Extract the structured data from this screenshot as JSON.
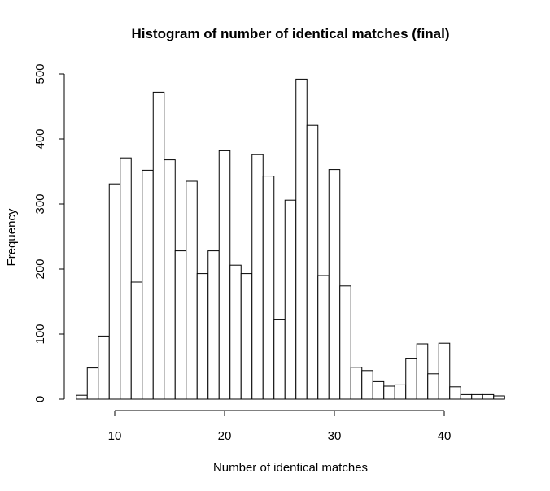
{
  "chart_data": {
    "type": "bar",
    "title": "Histogram of number of identical matches (final)",
    "xlabel": "Number of identical matches",
    "ylabel": "Frequency",
    "xlim": [
      7,
      45
    ],
    "ylim": [
      0,
      500
    ],
    "x_ticks": [
      10,
      20,
      30,
      40
    ],
    "y_ticks": [
      0,
      100,
      200,
      300,
      400,
      500
    ],
    "bin_width": 1,
    "bins": [
      {
        "x": 7,
        "value": 6
      },
      {
        "x": 8,
        "value": 48
      },
      {
        "x": 9,
        "value": 97
      },
      {
        "x": 10,
        "value": 331
      },
      {
        "x": 11,
        "value": 371
      },
      {
        "x": 12,
        "value": 180
      },
      {
        "x": 13,
        "value": 352
      },
      {
        "x": 14,
        "value": 472
      },
      {
        "x": 15,
        "value": 368
      },
      {
        "x": 16,
        "value": 228
      },
      {
        "x": 17,
        "value": 335
      },
      {
        "x": 18,
        "value": 193
      },
      {
        "x": 19,
        "value": 228
      },
      {
        "x": 20,
        "value": 382
      },
      {
        "x": 21,
        "value": 206
      },
      {
        "x": 22,
        "value": 193
      },
      {
        "x": 23,
        "value": 376
      },
      {
        "x": 24,
        "value": 343
      },
      {
        "x": 25,
        "value": 122
      },
      {
        "x": 26,
        "value": 306
      },
      {
        "x": 27,
        "value": 492
      },
      {
        "x": 28,
        "value": 421
      },
      {
        "x": 29,
        "value": 190
      },
      {
        "x": 30,
        "value": 353
      },
      {
        "x": 31,
        "value": 174
      },
      {
        "x": 32,
        "value": 49
      },
      {
        "x": 33,
        "value": 44
      },
      {
        "x": 34,
        "value": 27
      },
      {
        "x": 35,
        "value": 20
      },
      {
        "x": 36,
        "value": 22
      },
      {
        "x": 37,
        "value": 62
      },
      {
        "x": 38,
        "value": 85
      },
      {
        "x": 39,
        "value": 39
      },
      {
        "x": 40,
        "value": 86
      },
      {
        "x": 41,
        "value": 19
      },
      {
        "x": 42,
        "value": 7
      },
      {
        "x": 43,
        "value": 7
      },
      {
        "x": 44,
        "value": 7
      },
      {
        "x": 45,
        "value": 5
      }
    ],
    "grid": false,
    "colors": {
      "bar_fill": "#ffffff",
      "bar_stroke": "#000000"
    }
  }
}
